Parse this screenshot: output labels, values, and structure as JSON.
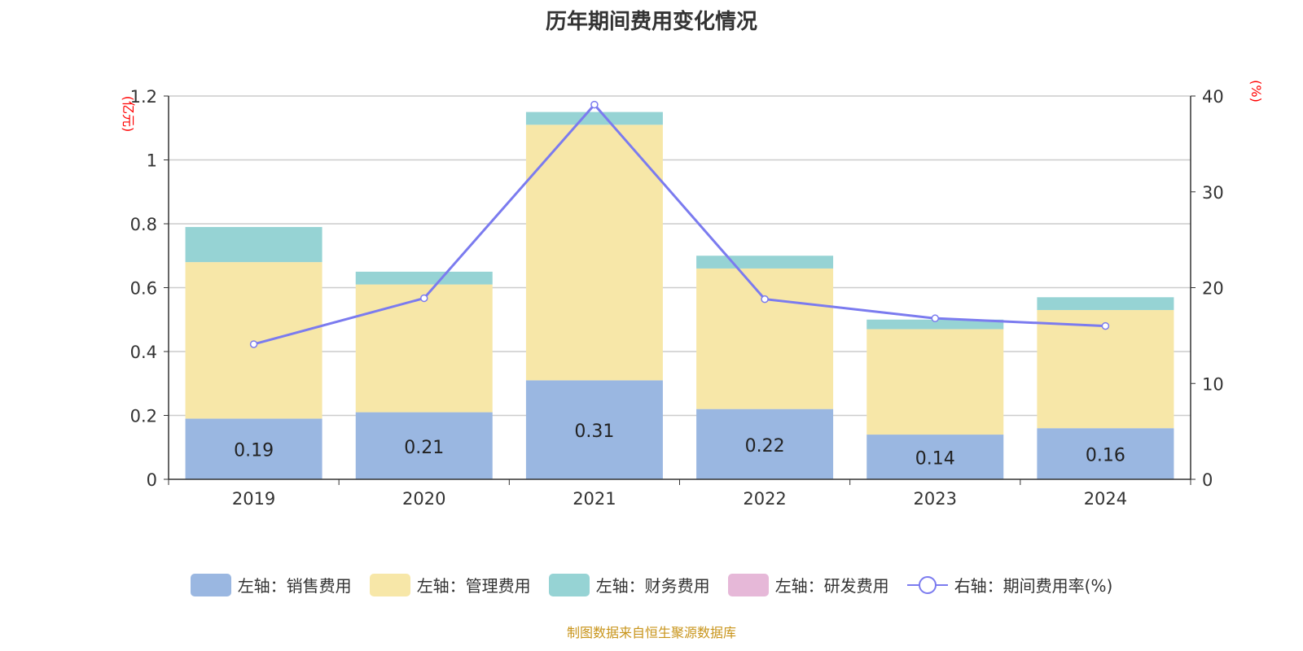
{
  "title": "历年期间费用变化情况",
  "footer": "制图数据来自恒生聚源数据库",
  "chart_data": {
    "type": "bar",
    "stacked": true,
    "title": "历年期间费用变化情况",
    "categories": [
      "2019",
      "2020",
      "2021",
      "2022",
      "2023",
      "2024"
    ],
    "left_axis": {
      "label": "(亿元)",
      "range": [
        0,
        1.2
      ],
      "ticks": [
        "0",
        "0.2",
        "0.4",
        "0.6",
        "0.8",
        "1",
        "1.2"
      ]
    },
    "right_axis": {
      "label": "(%)",
      "range": [
        0,
        40
      ],
      "ticks": [
        "0",
        "10",
        "20",
        "30",
        "40"
      ]
    },
    "series": [
      {
        "name": "左轴：销售费用",
        "color": "#9ab7e1",
        "values": [
          0.19,
          0.21,
          0.31,
          0.22,
          0.14,
          0.16
        ],
        "labels": [
          "0.19",
          "0.21",
          "0.31",
          "0.22",
          "0.14",
          "0.16"
        ]
      },
      {
        "name": "左轴：管理费用",
        "color": "#f7e7a8",
        "values": [
          0.49,
          0.4,
          0.8,
          0.44,
          0.33,
          0.37
        ]
      },
      {
        "name": "左轴：财务费用",
        "color": "#96d3d4",
        "values": [
          0.11,
          0.04,
          0.04,
          0.04,
          0.03,
          0.04
        ]
      },
      {
        "name": "左轴：研发费用",
        "color": "#e6b8d8",
        "values": [
          0,
          0,
          0,
          0,
          0,
          0
        ]
      }
    ],
    "line": {
      "name": "右轴：期间费用率(%)",
      "color": "#7b7bef",
      "values": [
        14.1,
        18.9,
        39.1,
        18.8,
        16.8,
        16.0
      ]
    },
    "grid": true,
    "legend": "bottom"
  }
}
